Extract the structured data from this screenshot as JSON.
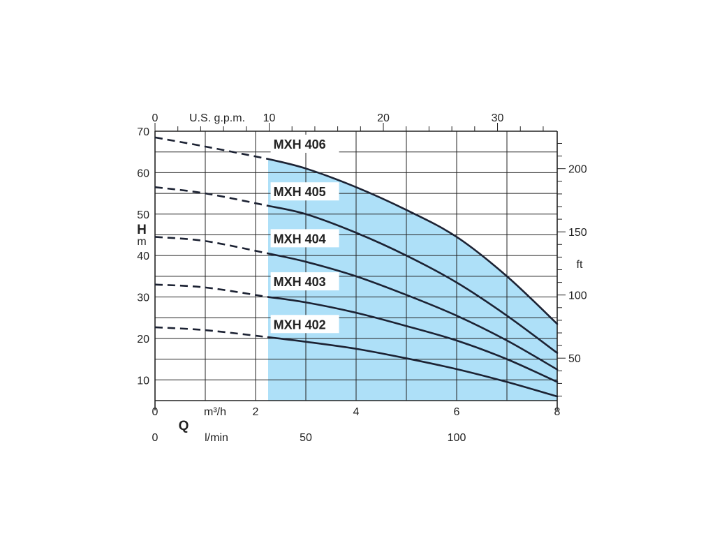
{
  "chart_data": {
    "type": "line",
    "title": "",
    "x_primary": {
      "label": "m³/h",
      "letter": "Q",
      "range": [
        0,
        8
      ],
      "ticks": [
        "0",
        "2",
        "4",
        "6",
        "8"
      ]
    },
    "x_secondary_bottom": {
      "label": "l/min",
      "ticks": [
        {
          "label": "0",
          "value": 0
        },
        {
          "label": "50",
          "value": 3
        },
        {
          "label": "100",
          "value": 6
        }
      ]
    },
    "x_secondary_top": {
      "label": "U.S. g.p.m.",
      "ticks": [
        {
          "label": "0",
          "value": 0
        },
        {
          "label": "10",
          "value": 10
        },
        {
          "label": "20",
          "value": 20
        },
        {
          "label": "30",
          "value": 30
        }
      ]
    },
    "y_primary": {
      "letter": "H",
      "label": "m",
      "range": [
        5,
        70
      ],
      "ticks": [
        "10",
        "20",
        "30",
        "40",
        "50",
        "60",
        "70"
      ]
    },
    "y_secondary": {
      "label": "ft",
      "ticks": [
        {
          "label": "50",
          "value": 50
        },
        {
          "label": "100",
          "value": 100
        },
        {
          "label": "150",
          "value": 150
        },
        {
          "label": "200",
          "value": 200
        }
      ]
    },
    "grid": true,
    "operating_range": {
      "x_from": 2.25,
      "x_to": 8,
      "color": "#aee0f8"
    },
    "series": [
      {
        "name": "MXH 406",
        "dashed": [
          [
            0,
            68.5
          ],
          [
            1,
            66.3
          ],
          [
            2.25,
            63.3
          ]
        ],
        "values": [
          [
            2.25,
            63.3
          ],
          [
            3,
            61
          ],
          [
            4,
            56.5
          ],
          [
            5,
            51
          ],
          [
            6,
            44.5
          ],
          [
            7,
            35
          ],
          [
            8,
            23.5
          ]
        ]
      },
      {
        "name": "MXH 405",
        "dashed": [
          [
            0,
            56.5
          ],
          [
            1,
            55
          ],
          [
            2.25,
            52
          ]
        ],
        "values": [
          [
            2.25,
            52
          ],
          [
            3,
            50
          ],
          [
            4,
            45.5
          ],
          [
            5,
            40
          ],
          [
            6,
            33.5
          ],
          [
            7,
            25.5
          ],
          [
            8,
            16.5
          ]
        ]
      },
      {
        "name": "MXH 404",
        "dashed": [
          [
            0,
            44.5
          ],
          [
            1,
            43.5
          ],
          [
            2.25,
            40.5
          ]
        ],
        "values": [
          [
            2.25,
            40.5
          ],
          [
            3,
            38.5
          ],
          [
            4,
            35
          ],
          [
            5,
            30.5
          ],
          [
            6,
            25.5
          ],
          [
            7,
            19.5
          ],
          [
            8,
            12.5
          ]
        ]
      },
      {
        "name": "MXH 403",
        "dashed": [
          [
            0,
            33
          ],
          [
            1,
            32.3
          ],
          [
            2.25,
            30
          ]
        ],
        "values": [
          [
            2.25,
            30
          ],
          [
            3,
            28.7
          ],
          [
            4,
            26.2
          ],
          [
            5,
            23
          ],
          [
            6,
            19.5
          ],
          [
            7,
            15
          ],
          [
            8,
            9.5
          ]
        ]
      },
      {
        "name": "MXH 402",
        "dashed": [
          [
            0,
            22.7
          ],
          [
            1,
            22
          ],
          [
            2.25,
            20.3
          ]
        ],
        "values": [
          [
            2.25,
            20.3
          ],
          [
            3,
            19.2
          ],
          [
            4,
            17.5
          ],
          [
            5,
            15.2
          ],
          [
            6,
            12.6
          ],
          [
            7,
            9.5
          ],
          [
            8,
            6
          ]
        ]
      }
    ],
    "colors": {
      "curve": "#1c2233",
      "grid": "#222222",
      "fill": "#aee0f8"
    }
  }
}
